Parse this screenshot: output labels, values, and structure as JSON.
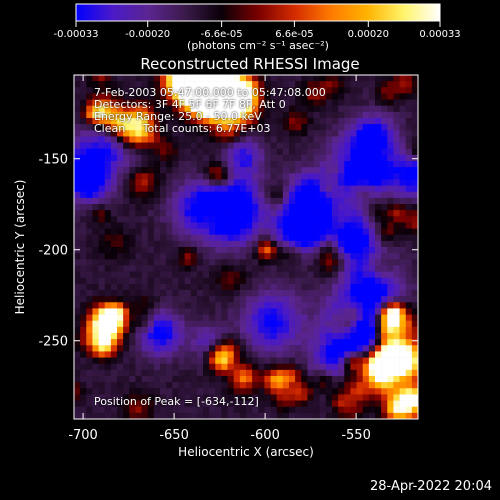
{
  "chart_data": {
    "type": "heatmap",
    "title": "Reconstructed RHESSI Image",
    "xlabel": "Heliocentric X (arcsec)",
    "ylabel": "Heliocentric Y (arcsec)",
    "xlim": [
      -705,
      -516
    ],
    "ylim": [
      -293,
      -104
    ],
    "xticks": [
      -700,
      -650,
      -600,
      -550
    ],
    "yticks": [
      -150,
      -200,
      -250
    ],
    "colorbar": {
      "ticks": [
        "-0.00033",
        "-0.00020",
        "-6.6e-05",
        "6.6e-05",
        "0.00020",
        "0.00033"
      ],
      "range": [
        -0.00033,
        0.00033
      ],
      "units_label": "(photons cm⁻² s⁻¹ asec⁻²)",
      "colors": [
        "#0000ff",
        "#4a19c8",
        "#5b2590",
        "#3a1a4a",
        "#0a0008",
        "#7a0000",
        "#d42b00",
        "#ff7a00",
        "#ffb300",
        "#fff46a",
        "#ffffff"
      ]
    },
    "annotations": [
      "7-Feb-2003 05:47:00.000 to 05:47:08.000",
      "Detectors: 3F 4F 5F 6F 7F 8F, Att 0",
      "Energy Range: 25.0 - 50.0 keV",
      "Clean     Total counts: 6.77E+03"
    ],
    "peak_label": "Position of Peak = [-634,-112]",
    "peak": {
      "x": -634,
      "y": -112
    }
  },
  "footer": {
    "date": "28-Apr-2022 20:04"
  }
}
